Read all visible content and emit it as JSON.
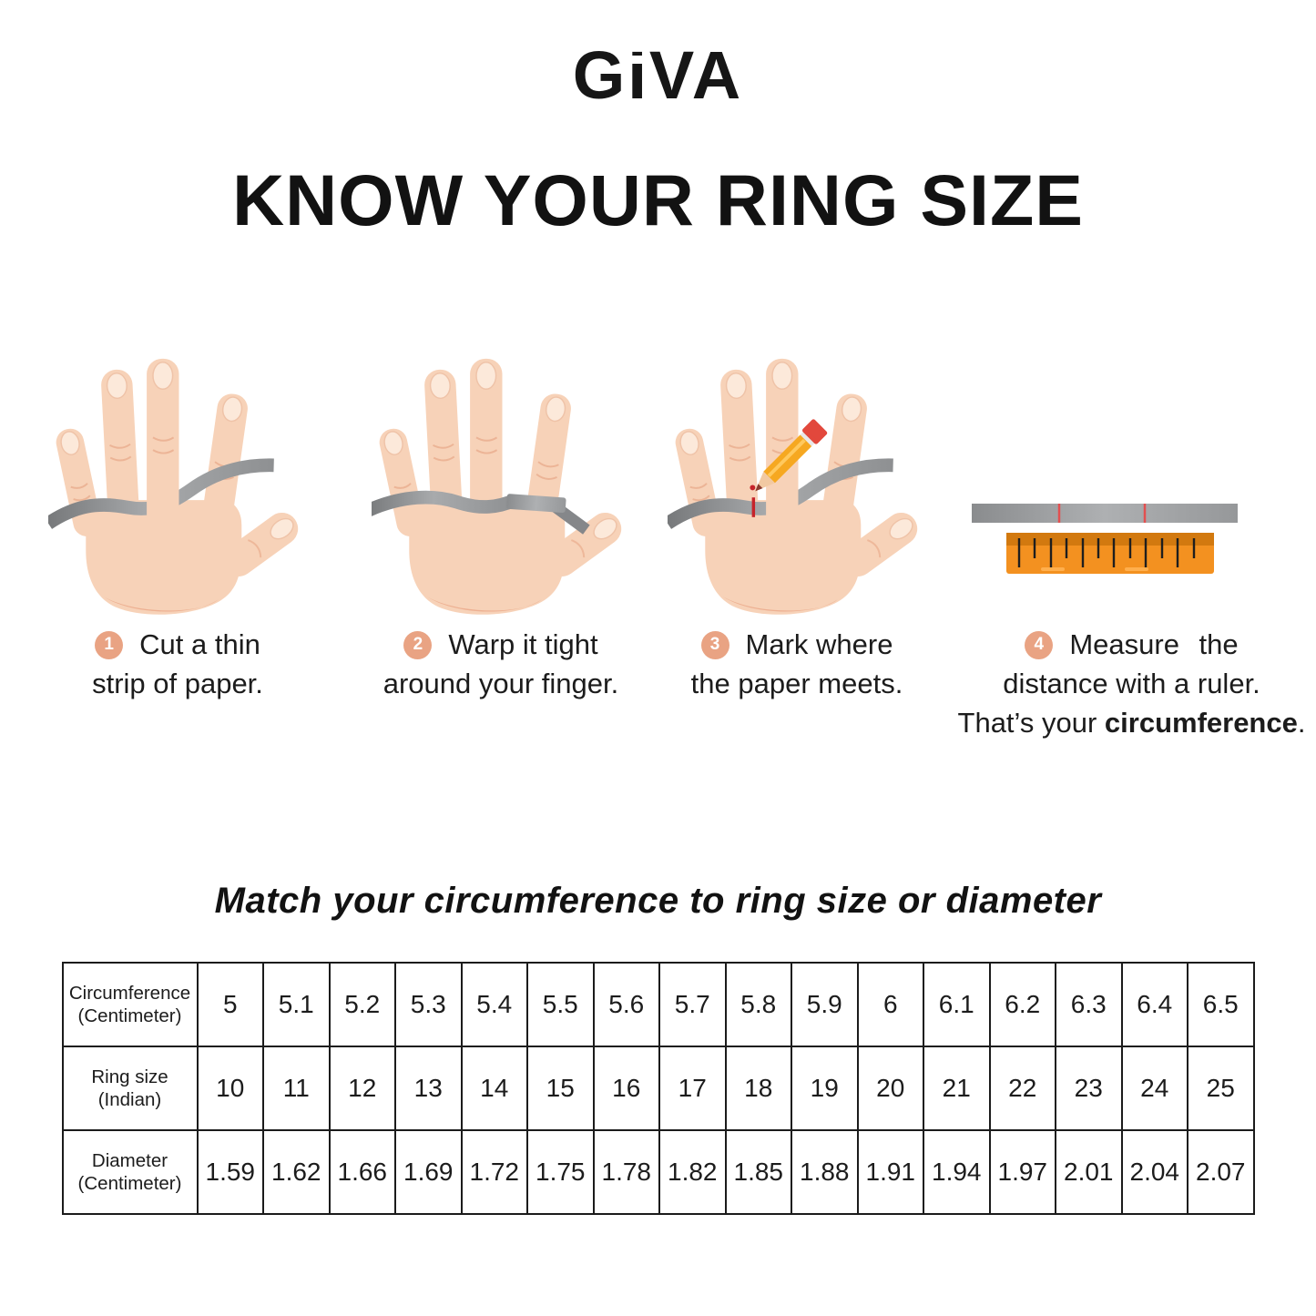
{
  "brand": "GIVA",
  "heading": "KNOW YOUR RING SIZE",
  "steps": [
    {
      "num": "1",
      "lines": [
        "Cut a thin",
        "strip of paper."
      ]
    },
    {
      "num": "2",
      "lines": [
        "Warp it tight",
        "around your finger."
      ]
    },
    {
      "num": "3",
      "lines": [
        "Mark where",
        "the paper meets."
      ]
    },
    {
      "num": "4",
      "lines": [
        "Measure the",
        "distance with a ruler."
      ],
      "line3_prefix": "That’s your ",
      "line3_bold": "circumference",
      "line3_suffix": "."
    }
  ],
  "table_title": "Match your circumference to ring size or diameter",
  "chart_data": {
    "type": "table",
    "rows": [
      {
        "label_line1": "Circumference",
        "label_line2": "(Centimeter)",
        "values": [
          "5",
          "5.1",
          "5.2",
          "5.3",
          "5.4",
          "5.5",
          "5.6",
          "5.7",
          "5.8",
          "5.9",
          "6",
          "6.1",
          "6.2",
          "6.3",
          "6.4",
          "6.5"
        ]
      },
      {
        "label_line1": "Ring size",
        "label_line2": "(Indian)",
        "values": [
          "10",
          "11",
          "12",
          "13",
          "14",
          "15",
          "16",
          "17",
          "18",
          "19",
          "20",
          "21",
          "22",
          "23",
          "24",
          "25"
        ]
      },
      {
        "label_line1": "Diameter",
        "label_line2": "(Centimeter)",
        "values": [
          "1.59",
          "1.62",
          "1.66",
          "1.69",
          "1.72",
          "1.75",
          "1.78",
          "1.82",
          "1.85",
          "1.88",
          "1.91",
          "1.94",
          "1.97",
          "2.01",
          "2.04",
          "2.07"
        ]
      }
    ]
  },
  "colors": {
    "step_badge": "#e9a383",
    "skin": "#f7d2b8",
    "strip_gray": "#9b9d9f",
    "ruler_orange": "#f39120",
    "mark_red": "#c6232a"
  }
}
